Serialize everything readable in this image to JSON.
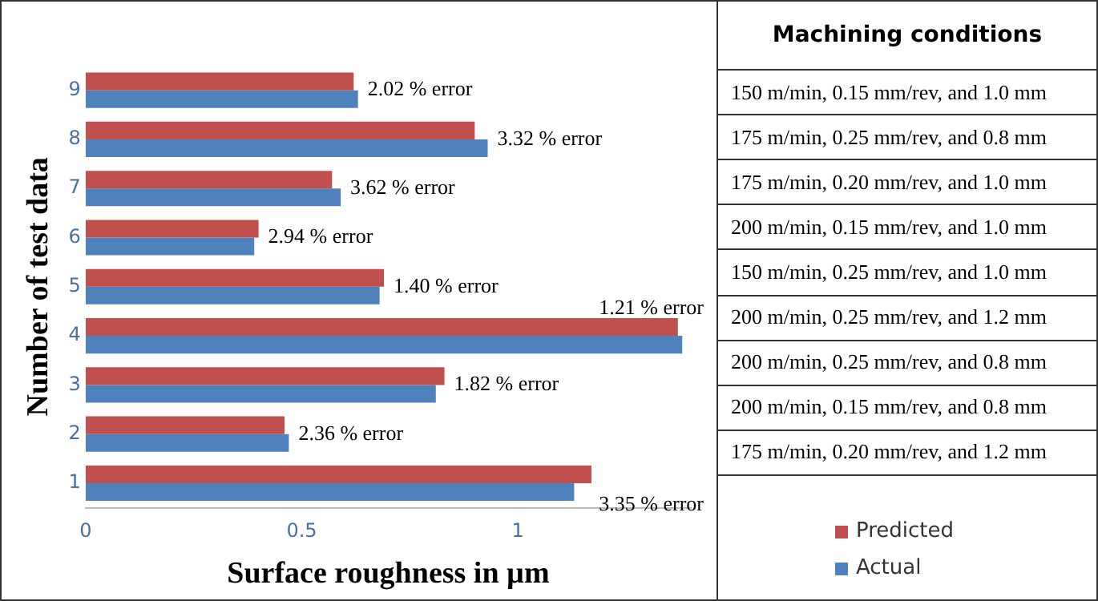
{
  "chart_data": {
    "type": "bar",
    "orientation": "horizontal",
    "xlabel": "Surface roughness in µm",
    "ylabel": "Number of test data",
    "categories": [
      "9",
      "8",
      "7",
      "6",
      "5",
      "4",
      "3",
      "2",
      "1"
    ],
    "series": [
      {
        "name": "Predicted",
        "color": "#c0504d",
        "values": [
          0.62,
          0.9,
          0.57,
          0.4,
          0.69,
          1.37,
          0.83,
          0.46,
          1.17
        ]
      },
      {
        "name": "Actual",
        "color": "#4f81bd",
        "values": [
          0.63,
          0.93,
          0.59,
          0.39,
          0.68,
          1.38,
          0.81,
          0.47,
          1.13
        ]
      }
    ],
    "xlim": [
      0,
      1.4
    ],
    "xticks": [
      0,
      0.5,
      1
    ],
    "grid": false,
    "legend": "bottom right",
    "annotations": [
      {
        "text": "2.02 % error",
        "x": 0.63,
        "y": "9"
      },
      {
        "text": "3.32 % error",
        "x": 0.93,
        "y": "8"
      },
      {
        "text": "3.62 % error",
        "x": 0.59,
        "y": "7"
      },
      {
        "text": "2.94 % error",
        "x": 0.4,
        "y": "6"
      },
      {
        "text": "1.40 % error",
        "x": 0.69,
        "y": "5"
      },
      {
        "text": "1.21 % error",
        "x": 1.38,
        "y": "4"
      },
      {
        "text": "1.82 % error",
        "x": 0.83,
        "y": "3"
      },
      {
        "text": "2.36 % error",
        "x": 0.47,
        "y": "2"
      },
      {
        "text": "3.35 % error",
        "x": 1.17,
        "y": "1"
      },
      "Machining conditions",
      "150 m/min, 0.15 mm/rev, and 1.0 mm",
      "175 m/min, 0.25 mm/rev, and 0.8 mm",
      "175 m/min, 0.20 mm/rev, and 1.0 mm",
      "200 m/min, 0.15 mm/rev, and 1.0 mm",
      "150 m/min, 0.25 mm/rev, and 1.0 mm",
      "200 m/min, 0.25 mm/rev, and 1.2 mm",
      "200 m/min, 0.25 mm/rev, and 0.8 mm",
      "200 m/min, 0.15 mm/rev, and 0.8 mm",
      "175 m/min, 0.20 mm/rev, and 1.2 mm"
    ]
  }
}
